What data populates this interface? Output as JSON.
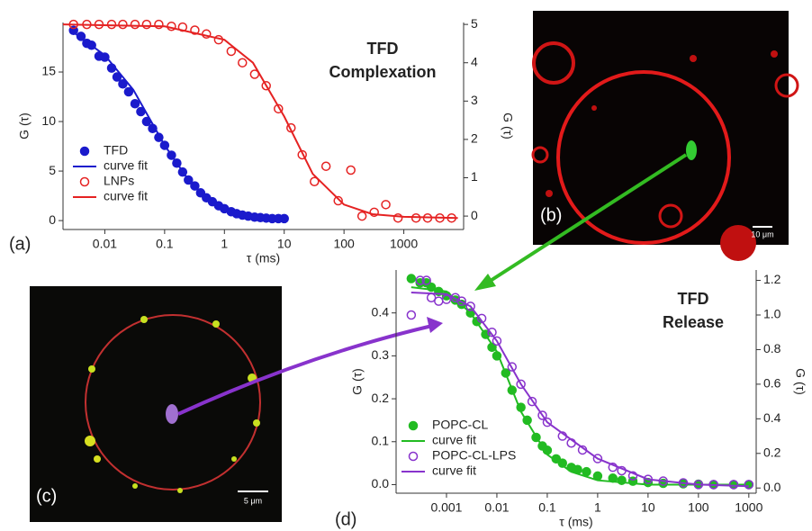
{
  "chart_data": [
    {
      "type": "scatter",
      "xscale": "log",
      "xlabel": "τ (ms)",
      "ylabel": "G (τ)",
      "y2label": "G (τ)",
      "annotations": [
        "TFD",
        "Complexation"
      ],
      "legend": "lower left",
      "xlim": [
        0.002,
        10000
      ],
      "xticks": [
        0.01,
        0.1,
        1,
        10,
        100,
        1000
      ],
      "ylim": [
        -0.9,
        20
      ],
      "yticks": [
        0,
        5,
        10,
        15
      ],
      "y2lim": [
        -0.35,
        5.05
      ],
      "y2ticks": [
        0,
        1,
        2,
        3,
        4,
        5
      ],
      "series": [
        {
          "name": "TFD",
          "color": "#1a1acc",
          "marker": "filled",
          "x": [
            0.003,
            0.004,
            0.005,
            0.006,
            0.008,
            0.01,
            0.013,
            0.016,
            0.02,
            0.025,
            0.032,
            0.04,
            0.05,
            0.063,
            0.08,
            0.1,
            0.13,
            0.16,
            0.2,
            0.25,
            0.32,
            0.4,
            0.5,
            0.63,
            0.8,
            1,
            1.3,
            1.6,
            2,
            2.5,
            3.2,
            4,
            5,
            6.3,
            8,
            10
          ],
          "values": [
            19.2,
            18.6,
            17.9,
            17.7,
            16.6,
            16.5,
            15.4,
            14.5,
            13.8,
            13.0,
            11.8,
            11.0,
            10.0,
            9.3,
            8.4,
            7.6,
            6.6,
            5.8,
            4.9,
            4.1,
            3.5,
            2.8,
            2.3,
            1.9,
            1.5,
            1.2,
            0.9,
            0.7,
            0.55,
            0.45,
            0.35,
            0.3,
            0.25,
            0.2,
            0.2,
            0.2
          ]
        },
        {
          "name": "curve fit",
          "color": "#1a1acc",
          "marker": "line",
          "x": [
            0.003,
            0.01,
            0.03,
            0.1,
            0.3,
            1,
            3,
            10
          ],
          "values": [
            19.0,
            16.7,
            13.2,
            7.6,
            3.4,
            1.2,
            0.4,
            0.1
          ]
        },
        {
          "name": "LNPs",
          "color": "#e52222",
          "marker": "open",
          "axis": "y2",
          "x": [
            0.003,
            0.005,
            0.008,
            0.013,
            0.02,
            0.032,
            0.05,
            0.08,
            0.13,
            0.2,
            0.32,
            0.5,
            0.8,
            1.3,
            2,
            3.2,
            5,
            8,
            13,
            20,
            32,
            50,
            80,
            130,
            200,
            320,
            500,
            800,
            1600,
            2500,
            4000,
            6300
          ],
          "values": [
            5,
            5,
            5,
            5,
            5,
            5,
            5,
            5,
            4.95,
            4.93,
            4.85,
            4.75,
            4.6,
            4.3,
            4.0,
            3.7,
            3.4,
            2.8,
            2.3,
            1.6,
            0.9,
            1.3,
            0.4,
            1.2,
            0.0,
            0.1,
            0.3,
            -0.05,
            -0.05,
            -0.05,
            -0.05,
            -0.05
          ]
        },
        {
          "name": "curve fit",
          "color": "#e52222",
          "marker": "line",
          "axis": "y2",
          "x": [
            0.002,
            0.1,
            1,
            3,
            10,
            30,
            100,
            300,
            1000,
            8000
          ],
          "values": [
            5,
            4.95,
            4.6,
            4.0,
            2.6,
            1.1,
            0.3,
            0.05,
            -0.02,
            -0.05
          ]
        }
      ]
    },
    {
      "type": "scatter",
      "xscale": "log",
      "xlabel": "τ (ms)",
      "ylabel": "G (τ)",
      "y2label": "G (τ)",
      "annotations": [
        "TFD",
        "Release"
      ],
      "legend": "lower left",
      "xlim": [
        0.0001,
        1400
      ],
      "xticks": [
        0.001,
        0.01,
        0.1,
        1,
        10,
        100,
        1000
      ],
      "ylim": [
        -0.02,
        0.5
      ],
      "yticks": [
        {
          "value": 0,
          "label": "0.0"
        },
        0.1,
        0.2,
        0.3,
        0.4
      ],
      "y2lim": [
        -0.03,
        1.26
      ],
      "y2ticks": [
        {
          "value": 0,
          "label": "0.0"
        },
        0.2,
        0.4,
        0.6,
        0.8,
        {
          "value": 1,
          "label": "1.0"
        },
        1.2
      ],
      "series": [
        {
          "name": "POPC-CL",
          "color": "#22bb22",
          "marker": "filled",
          "x": [
            0.0002,
            0.0003,
            0.0004,
            0.0005,
            0.0007,
            0.001,
            0.0015,
            0.002,
            0.003,
            0.004,
            0.006,
            0.008,
            0.01,
            0.015,
            0.02,
            0.03,
            0.04,
            0.06,
            0.08,
            0.1,
            0.15,
            0.2,
            0.3,
            0.4,
            0.6,
            1,
            2,
            3,
            5,
            10,
            20,
            50,
            100,
            200,
            500,
            1000
          ],
          "values": [
            0.48,
            0.47,
            0.47,
            0.46,
            0.45,
            0.44,
            0.43,
            0.42,
            0.4,
            0.38,
            0.35,
            0.32,
            0.3,
            0.26,
            0.22,
            0.18,
            0.15,
            0.11,
            0.09,
            0.08,
            0.06,
            0.05,
            0.04,
            0.035,
            0.03,
            0.02,
            0.015,
            0.01,
            0.008,
            0.005,
            0.003,
            0.002,
            0.001,
            0,
            0,
            0
          ]
        },
        {
          "name": "curve fit",
          "color": "#22bb22",
          "marker": "line",
          "x": [
            0.0002,
            0.001,
            0.003,
            0.01,
            0.03,
            0.1,
            0.3,
            1,
            10,
            1000
          ],
          "values": [
            0.46,
            0.45,
            0.4,
            0.31,
            0.17,
            0.07,
            0.03,
            0.01,
            0,
            0
          ]
        },
        {
          "name": "POPC-CL-LPS",
          "color": "#8833cc",
          "marker": "open",
          "axis": "y2",
          "x": [
            0.0002,
            0.0003,
            0.0004,
            0.0005,
            0.0007,
            0.001,
            0.0015,
            0.002,
            0.003,
            0.005,
            0.008,
            0.01,
            0.02,
            0.03,
            0.05,
            0.08,
            0.1,
            0.2,
            0.3,
            0.5,
            1,
            2,
            3,
            5,
            10,
            20,
            50,
            100,
            200,
            500,
            1000
          ],
          "values": [
            1.0,
            1.2,
            1.2,
            1.1,
            1.08,
            1.09,
            1.1,
            1.08,
            1.05,
            0.98,
            0.9,
            0.85,
            0.7,
            0.6,
            0.5,
            0.42,
            0.38,
            0.3,
            0.26,
            0.22,
            0.17,
            0.12,
            0.1,
            0.07,
            0.05,
            0.04,
            0.03,
            0.02,
            0.02,
            0.02,
            0.02
          ]
        },
        {
          "name": "curve fit",
          "color": "#8833cc",
          "marker": "line",
          "axis": "y2",
          "x": [
            0.0002,
            0.001,
            0.003,
            0.01,
            0.03,
            0.1,
            1,
            10,
            100,
            1000
          ],
          "values": [
            1.13,
            1.12,
            1.05,
            0.85,
            0.6,
            0.38,
            0.17,
            0.05,
            0.02,
            0.01
          ]
        }
      ]
    }
  ],
  "panels": {
    "labels": [
      "(a)",
      "(b)",
      "(c)",
      "(d)"
    ],
    "scale_bars": [
      "10 μm",
      "5 μm"
    ]
  }
}
